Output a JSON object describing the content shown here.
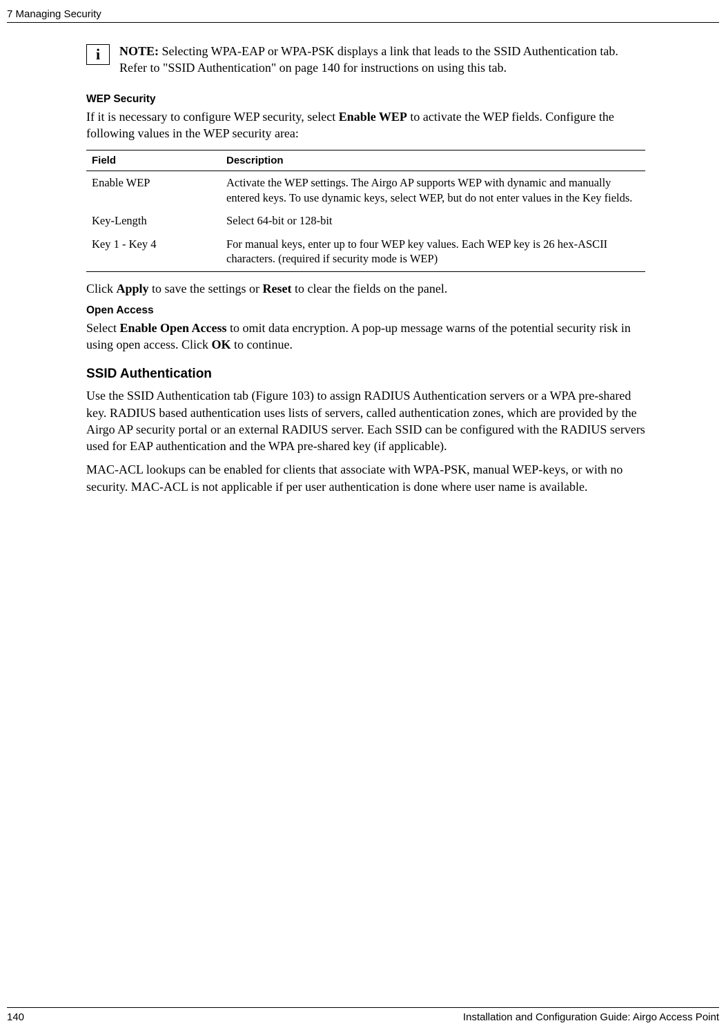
{
  "header": {
    "chapter": "7  Managing Security"
  },
  "note": {
    "icon_glyph": "i",
    "label": "NOTE:",
    "text": " Selecting WPA-EAP or WPA-PSK displays a link that leads to the SSID Authentication tab. Refer to \"SSID Authentication\" on page 140 for instructions on using this tab."
  },
  "wep": {
    "heading": "WEP Security",
    "intro_part1": "If it is necessary to configure WEP security, select ",
    "intro_bold": "Enable WEP",
    "intro_part2": " to activate the WEP fields. Configure the following values in the WEP security area:",
    "table": {
      "col_field": "Field",
      "col_desc": "Description",
      "rows": [
        {
          "field": "Enable WEP",
          "desc": "Activate the WEP settings. The Airgo AP supports WEP with dynamic and manually entered keys. To use dynamic keys, select WEP, but do not enter values in the Key fields."
        },
        {
          "field": "Key-Length",
          "desc": "Select 64-bit or 128-bit"
        },
        {
          "field": "Key 1 - Key 4",
          "desc": "For manual keys, enter up to four WEP key values. Each WEP key is 26 hex-ASCII characters. (required if security mode is WEP)"
        }
      ]
    },
    "post_p_1": "Click ",
    "post_b_1": "Apply",
    "post_p_2": " to save the settings or ",
    "post_b_2": "Reset",
    "post_p_3": " to clear the fields on the panel."
  },
  "open_access": {
    "heading": "Open Access",
    "p_1": "Select ",
    "b_1": "Enable Open Access",
    "p_2": " to omit data encryption. A pop-up message warns of the potential security risk in using open access. Click ",
    "b_2": "OK",
    "p_3": " to continue."
  },
  "ssid_auth": {
    "heading": "SSID Authentication",
    "para1": "Use the SSID Authentication tab (Figure 103) to assign RADIUS Authentication servers or a WPA pre-shared key. RADIUS based authentication uses lists of servers, called authentication zones, which are provided by the Airgo AP security portal or an external RADIUS server. Each SSID can be configured with the RADIUS servers used for EAP authentication and the WPA pre-shared key (if applicable).",
    "para2": "MAC-ACL lookups can be enabled for clients that associate with WPA-PSK, manual WEP-keys, or with no security. MAC-ACL is not applicable if per user authentication is done where user name is available."
  },
  "footer": {
    "page": "140",
    "doc_title": "Installation and Configuration Guide: Airgo Access Point"
  }
}
